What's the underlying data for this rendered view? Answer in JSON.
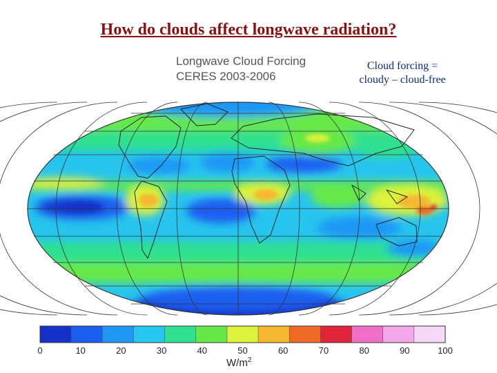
{
  "slide": {
    "title": "How do clouds affect longwave radiation?",
    "note_line1": "Cloud forcing =",
    "note_line2": "cloudy – cloud-free"
  },
  "map": {
    "title_line1": "Longwave Cloud Forcing",
    "title_line2": "CERES 2003-2006",
    "projection": "Mollweide",
    "grid": true,
    "colors": {
      "coastline": "#222222",
      "grid": "#333333"
    }
  },
  "colorbar": {
    "unit_base": "W/m",
    "unit_exp": "2",
    "ticks": [
      "0",
      "10",
      "20",
      "30",
      "40",
      "50",
      "60",
      "70",
      "80",
      "90",
      "100"
    ],
    "colors": [
      "#1430c8",
      "#1c5ef0",
      "#1f97f5",
      "#26c8f0",
      "#2fe090",
      "#66e84a",
      "#ddf23a",
      "#f5b830",
      "#ef6a24",
      "#e0243a",
      "#f06fc8",
      "#f4a7ea",
      "#f8d8f8"
    ]
  }
}
